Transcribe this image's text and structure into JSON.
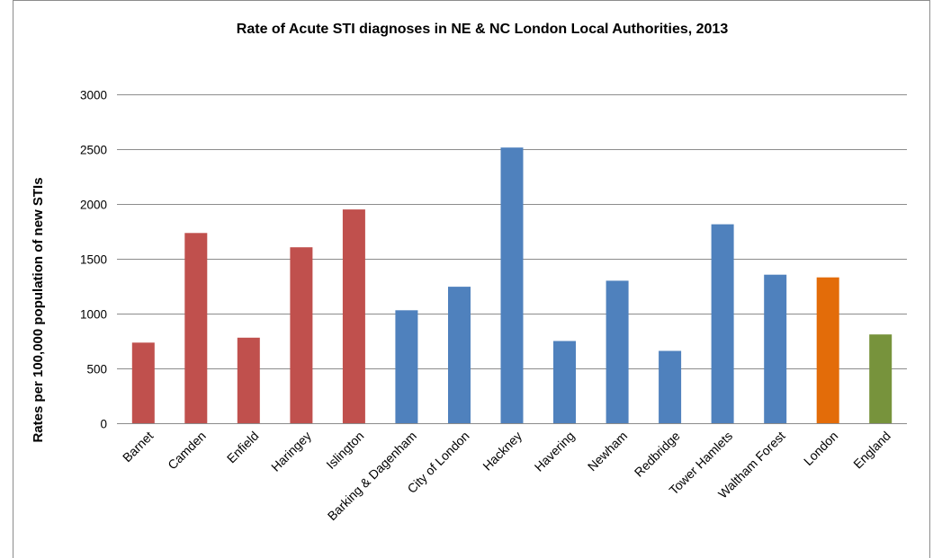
{
  "chart_data": {
    "type": "bar",
    "title": "Rate of Acute STI diagnoses in NE & NC London Local Authorities, 2013",
    "xlabel": "",
    "ylabel": "Rates per 100,000 population of new STIs",
    "ylim": [
      0,
      3000
    ],
    "yticks": [
      0,
      500,
      1000,
      1500,
      2000,
      2500,
      3000
    ],
    "grid": true,
    "categories": [
      "Barnet",
      "Camden",
      "Enfield",
      "Haringey",
      "Islington",
      "Barking & Dagenham",
      "City of London",
      "Hackney",
      "Havering",
      "Newham",
      "Redbridge",
      "Tower Hamlets",
      "Waltham Forest",
      "London",
      "England"
    ],
    "values": [
      735,
      1735,
      780,
      1605,
      1950,
      1030,
      1245,
      2515,
      750,
      1300,
      660,
      1815,
      1355,
      1330,
      810
    ],
    "colors": [
      "#c0504d",
      "#c0504d",
      "#c0504d",
      "#c0504d",
      "#c0504d",
      "#4f81bd",
      "#4f81bd",
      "#4f81bd",
      "#4f81bd",
      "#4f81bd",
      "#4f81bd",
      "#4f81bd",
      "#4f81bd",
      "#e36c09",
      "#77933c"
    ]
  }
}
